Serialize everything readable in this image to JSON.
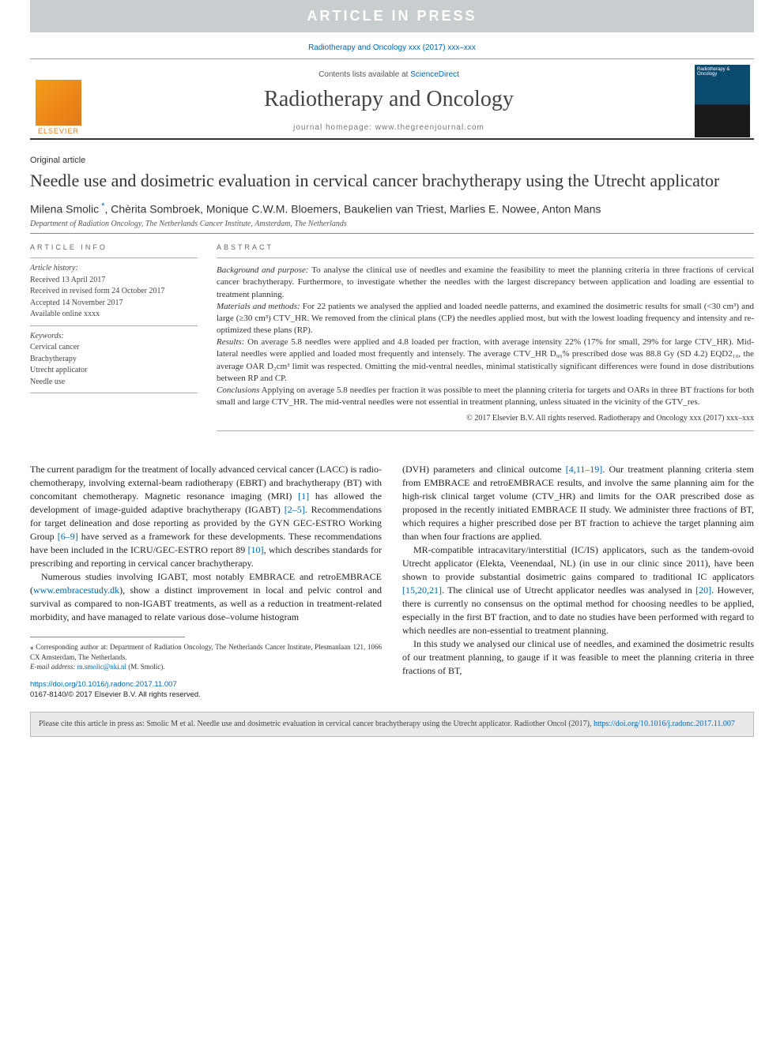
{
  "banner": "ARTICLE IN PRESS",
  "citationLine": "Radiotherapy and Oncology xxx (2017) xxx–xxx",
  "masthead": {
    "contentsPrefix": "Contents lists available at ",
    "scienceDirect": "ScienceDirect",
    "journalName": "Radiotherapy and Oncology",
    "homepage": "journal homepage: www.thegreenjournal.com",
    "elsevier": "ELSEVIER",
    "coverText": "Radiotherapy & Oncology"
  },
  "articleType": "Original article",
  "title": "Needle use and dosimetric evaluation in cervical cancer brachytherapy using the Utrecht applicator",
  "authorsPre": "Milena Smolic",
  "authorsPost": ", Chèrita Sombroek, Monique C.W.M. Bloemers, Baukelien van Triest, Marlies E. Nowee, Anton Mans",
  "affiliation": "Department of Radiation Oncology, The Netherlands Cancer Institute, Amsterdam, The Netherlands",
  "info": {
    "head": "ARTICLE INFO",
    "historyHead": "Article history:",
    "h1": "Received 13 April 2017",
    "h2": "Received in revised form 24 October 2017",
    "h3": "Accepted 14 November 2017",
    "h4": "Available online xxxx",
    "kwHead": "Keywords:",
    "k1": "Cervical cancer",
    "k2": "Brachytherapy",
    "k3": "Utrecht applicator",
    "k4": "Needle use"
  },
  "absHead": "ABSTRACT",
  "abs": {
    "s1h": "Background and purpose:",
    "s1": " To analyse the clinical use of needles and examine the feasibility to meet the planning criteria in three fractions of cervical cancer brachytherapy. Furthermore, to investigate whether the needles with the largest discrepancy between application and loading are essential to treatment planning.",
    "s2h": "Materials and methods:",
    "s2": " For 22 patients we analysed the applied and loaded needle patterns, and examined the dosimetric results for small (<30 cm³) and large (≥30 cm³) CTV_HR. We removed from the clinical plans (CP) the needles applied most, but with the lowest loading frequency and intensity and re-optimized these plans (RP).",
    "s3h": "Results:",
    "s3": " On average 5.8 needles were applied and 4.8 loaded per fraction, with average intensity 22% (17% for small, 29% for large CTV_HR). Mid-lateral needles were applied and loaded most frequently and intensely. The average CTV_HR D₉₀% prescribed dose was 88.8 Gy (SD 4.2) EQD2₁₀, the average OAR D₂cm³ limit was respected. Omitting the mid-ventral needles, minimal statistically significant differences were found in dose distributions between RP and CP.",
    "s4h": "Conclusions",
    "s4": " Applying on average 5.8 needles per fraction it was possible to meet the planning criteria for targets and OARs in three BT fractions for both small and large CTV_HR. The mid-ventral needles were not essential in treatment planning, unless situated in the vicinity of the GTV_res.",
    "copy": "© 2017 Elsevier B.V. All rights reserved. Radiotherapy and Oncology xxx (2017) xxx–xxx"
  },
  "body": {
    "l1": "The current paradigm for the treatment of locally advanced cervical cancer (LACC) is radio-chemotherapy, involving external-beam radiotherapy (EBRT) and brachytherapy (BT) with concomitant chemotherapy. Magnetic resonance imaging (MRI) ",
    "l1r1": "[1]",
    "l1b": " has allowed the development of image-guided adaptive brachytherapy (IGABT) ",
    "l1r2": "[2–5]",
    "l1c": ". Recommendations for target delineation and dose reporting as provided by the GYN GEC-ESTRO Working Group ",
    "l1r3": "[6–9]",
    "l1d": " have served as a framework for these developments. These recommendations have been included in the ICRU/GEC-ESTRO report 89 ",
    "l1r4": "[10]",
    "l1e": ", which describes standards for prescribing and reporting in cervical cancer brachytherapy.",
    "l2a": "Numerous studies involving IGABT, most notably EMBRACE and retroEMBRACE (",
    "l2link": "www.embracestudy.dk",
    "l2b": "), show a distinct improvement in local and pelvic control and survival as compared to non-IGABT treatments, as well as a reduction in treatment-related morbidity, and have managed to relate various dose–volume histogram",
    "r1a": "(DVH) parameters and clinical outcome ",
    "r1r1": "[4,11–19]",
    "r1b": ". Our treatment planning criteria stem from EMBRACE and retroEMBRACE results, and involve the same planning aim for the high-risk clinical target volume (CTV_HR) and limits for the OAR prescribed dose as proposed in the recently initiated EMBRACE II study. We administer three fractions of BT, which requires a higher prescribed dose per BT fraction to achieve the target planning aim than when four fractions are applied.",
    "r2a": "MR-compatible intracavitary/interstitial (IC/IS) applicators, such as the tandem-ovoid Utrecht applicator (Elekta, Veenendaal, NL) (in use in our clinic since 2011), have been shown to provide substantial dosimetric gains compared to traditional IC applicators ",
    "r2r1": "[15,20,21]",
    "r2b": ". The clinical use of Utrecht applicator needles was analysed in ",
    "r2r2": "[20]",
    "r2c": ". However, there is currently no consensus on the optimal method for choosing needles to be applied, especially in the first BT fraction, and to date no studies have been performed with regard to which needles are non-essential to treatment planning.",
    "r3": "In this study we analysed our clinical use of needles, and examined the dosimetric results of our treatment planning, to gauge if it was feasible to meet the planning criteria in three fractions of BT,"
  },
  "footnote": {
    "corr": "⁎ Corresponding author at: Department of Radiation Oncology, The Netherlands Cancer Institute, Plesmanlaan 121, 1066 CX Amsterdam, The Netherlands.",
    "emailLabel": "E-mail address: ",
    "email": "m.smolic@nki.nl",
    "emailWho": " (M. Smolic)."
  },
  "doi": {
    "url": "https://doi.org/10.1016/j.radonc.2017.11.007",
    "issn": "0167-8140/© 2017 Elsevier B.V. All rights reserved."
  },
  "citeBox": {
    "text": "Please cite this article in press as: Smolic M et al. Needle use and dosimetric evaluation in cervical cancer brachytherapy using the Utrecht applicator. Radiother Oncol (2017), ",
    "url": "https://doi.org/10.1016/j.radonc.2017.11.007"
  }
}
